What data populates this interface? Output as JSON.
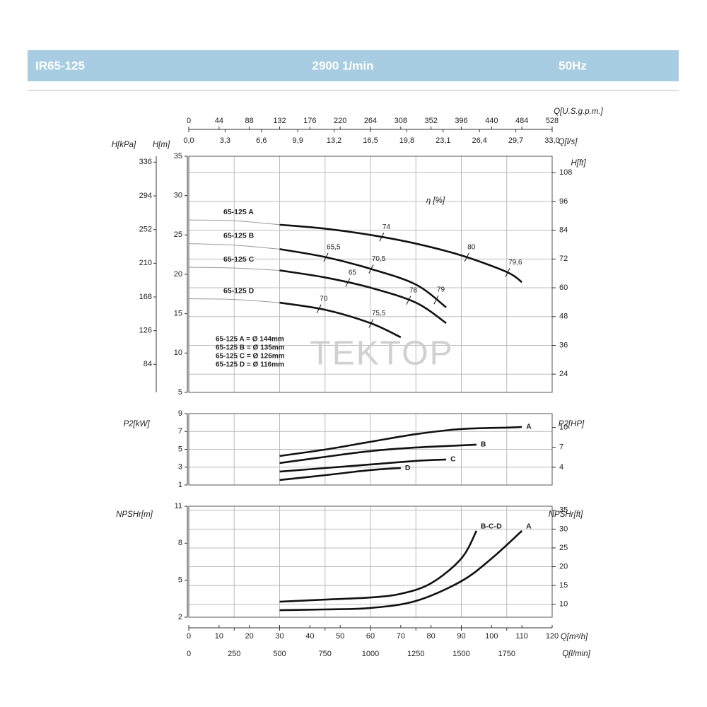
{
  "header": {
    "model": "IR65-125",
    "speed": "2900 1/min",
    "frequency": "50Hz"
  },
  "chart_data": [
    {
      "type": "line",
      "xlim": [
        0,
        120
      ],
      "x_top": [
        {
          "label": "Q[U.S.g.p.m.]",
          "lim": [
            0,
            528
          ],
          "ticks": [
            0,
            44,
            88,
            132,
            176,
            220,
            264,
            308,
            352,
            396,
            440,
            484,
            528
          ]
        },
        {
          "label": "Q[l/s]",
          "lim": [
            0,
            33
          ],
          "ticks": [
            {
              "value": 0,
              "label": "0,0"
            },
            {
              "value": 3.3,
              "label": "3,3"
            },
            {
              "value": 6.6,
              "label": "6,6"
            },
            {
              "value": 9.9,
              "label": "9,9"
            },
            {
              "value": 13.2,
              "label": "13,2"
            },
            {
              "value": 16.5,
              "label": "16,5"
            },
            {
              "value": 19.8,
              "label": "19,8"
            },
            {
              "value": 23.1,
              "label": "23,1"
            },
            {
              "value": 26.4,
              "label": "26,4"
            },
            {
              "value": 29.7,
              "label": "29,7"
            },
            {
              "value": 33,
              "label": "33,0"
            }
          ]
        }
      ],
      "ylabel": "H[m]",
      "ylim": [
        5,
        35
      ],
      "yticks": [
        5,
        10,
        15,
        20,
        25,
        30,
        35
      ],
      "y2label": "H[ft]",
      "y2lim": [
        16.4,
        114.83
      ],
      "y2ticks": [
        24,
        36,
        48,
        60,
        72,
        84,
        96,
        108
      ],
      "y3label": "H[kPa]",
      "y3lim": [
        49.05,
        343.35
      ],
      "y3ticks": [
        84,
        126,
        168,
        210,
        252,
        294,
        336
      ],
      "grid_axis": "y2",
      "thin_below": 30,
      "label_position": "start",
      "eta_label": "η [%]",
      "notes": [
        "65-125 A = Ø 144mm",
        "65-125 B = Ø 135mm",
        "65-125 C = Ø 126mm",
        "65-125 D = Ø 116mm"
      ],
      "watermark": "TEKTOP",
      "series": [
        {
          "name": "65-125 A",
          "color": "#111111",
          "x": [
            0,
            15,
            30,
            45,
            60,
            75,
            90,
            105,
            110
          ],
          "values": [
            26.9,
            26.8,
            26.3,
            25.8,
            25.0,
            23.9,
            22.4,
            20.3,
            19.0
          ],
          "efficiency": [
            {
              "x": 63.7,
              "value": 74
            },
            {
              "x": 91.8,
              "value": 80
            },
            {
              "x": 105.3,
              "value": 79.6,
              "label": "79,6"
            }
          ]
        },
        {
          "name": "65-125 B",
          "color": "#111111",
          "x": [
            0,
            15,
            30,
            45,
            60,
            75,
            85
          ],
          "values": [
            23.9,
            23.7,
            23.2,
            22.2,
            20.7,
            18.7,
            15.8
          ],
          "efficiency": [
            {
              "x": 45.3,
              "value": 65.5,
              "label": "65,5"
            },
            {
              "x": 60.2,
              "value": 70.5,
              "label": "70,5"
            },
            {
              "x": 81.7,
              "value": 79
            }
          ]
        },
        {
          "name": "65-125 C",
          "color": "#111111",
          "x": [
            0,
            15,
            30,
            45,
            60,
            75,
            85
          ],
          "values": [
            20.9,
            20.8,
            20.5,
            19.6,
            18.3,
            16.4,
            13.8
          ],
          "efficiency": [
            {
              "x": 52.5,
              "value": 65
            },
            {
              "x": 72.6,
              "value": 78
            }
          ]
        },
        {
          "name": "65-125 D",
          "color": "#111111",
          "x": [
            0,
            15,
            30,
            45,
            60,
            70
          ],
          "values": [
            16.9,
            16.8,
            16.4,
            15.5,
            13.8,
            12.0
          ],
          "efficiency": [
            {
              "x": 43,
              "value": 70
            },
            {
              "x": 60.2,
              "value": 75.5,
              "label": "75,5"
            }
          ]
        }
      ]
    },
    {
      "type": "line",
      "xlim": [
        0,
        120
      ],
      "ylabel": "P2[kW]",
      "ylim": [
        1,
        9
      ],
      "yticks": [
        1,
        3,
        5,
        7,
        9
      ],
      "y2label": "P2[HP]",
      "y2lim": [
        1.34,
        12.07
      ],
      "y2ticks": [
        4,
        7,
        10
      ],
      "grid_axis": "y",
      "label_position": "end",
      "series": [
        {
          "name": "A",
          "color": "#111111",
          "x": [
            30,
            45,
            60,
            75,
            90,
            105,
            110
          ],
          "values": [
            4.25,
            4.97,
            5.84,
            6.7,
            7.27,
            7.43,
            7.5
          ]
        },
        {
          "name": "B",
          "color": "#111111",
          "x": [
            30,
            45,
            60,
            75,
            90,
            95
          ],
          "values": [
            3.46,
            4.15,
            4.8,
            5.2,
            5.44,
            5.52
          ]
        },
        {
          "name": "C",
          "color": "#111111",
          "x": [
            30,
            45,
            60,
            75,
            85
          ],
          "values": [
            2.5,
            2.9,
            3.3,
            3.7,
            3.86
          ]
        },
        {
          "name": "D",
          "color": "#111111",
          "x": [
            30,
            45,
            60,
            70
          ],
          "values": [
            1.56,
            2.1,
            2.67,
            2.9
          ]
        }
      ]
    },
    {
      "type": "line",
      "xlim": [
        0,
        120
      ],
      "ylabel": "NPSHr[m]",
      "ylim": [
        2,
        11
      ],
      "yticks": [
        2,
        5,
        8,
        11
      ],
      "y2label": "NPSHr[ft]",
      "y2lim": [
        6.56,
        36.09
      ],
      "y2ticks": [
        10,
        15,
        20,
        25,
        30,
        35
      ],
      "grid_axis": "y2",
      "label_position": "end",
      "xlabel": "Q[m³/h]",
      "xticks": [
        0,
        10,
        20,
        30,
        40,
        50,
        60,
        70,
        80,
        90,
        100,
        110,
        120
      ],
      "x2label": "Q[l/min]",
      "x2lim": [
        0,
        2000
      ],
      "x2ticks": [
        0,
        250,
        500,
        750,
        1000,
        1250,
        1500,
        1750
      ],
      "series": [
        {
          "name": "B-C-D",
          "color": "#111111",
          "x": [
            30,
            45,
            60,
            70,
            80,
            90,
            95
          ],
          "values": [
            3.26,
            3.43,
            3.6,
            3.9,
            4.75,
            6.76,
            9.0
          ]
        },
        {
          "name": "A",
          "color": "#111111",
          "x": [
            30,
            45,
            60,
            75,
            90,
            100,
            110
          ],
          "values": [
            2.57,
            2.63,
            2.75,
            3.32,
            4.92,
            6.76,
            9.0
          ]
        }
      ]
    }
  ]
}
